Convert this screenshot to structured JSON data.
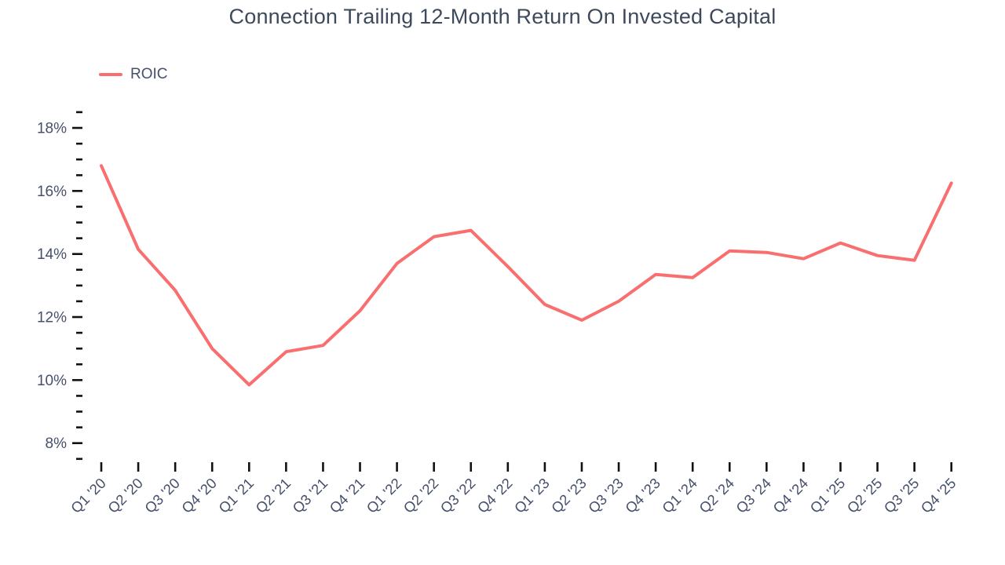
{
  "header": {
    "title": "Connection Trailing 12-Month Return On Invested Capital"
  },
  "legend": {
    "items": [
      {
        "label": "ROIC",
        "color": "#f96f6f"
      }
    ]
  },
  "chart_data": {
    "type": "line",
    "title": "Connection Trailing 12-Month Return On Invested Capital",
    "categories": [
      "Q1 '20",
      "Q2 '20",
      "Q3 '20",
      "Q4 '20",
      "Q1 '21",
      "Q2 '21",
      "Q3 '21",
      "Q4 '21",
      "Q1 '22",
      "Q2 '22",
      "Q3 '22",
      "Q4 '22",
      "Q1 '23",
      "Q2 '23",
      "Q3 '23",
      "Q4 '23",
      "Q1 '24",
      "Q2 '24",
      "Q3 '24",
      "Q4 '24",
      "Q1 '25",
      "Q2 '25",
      "Q3 '25",
      "Q4 '25"
    ],
    "series": [
      {
        "name": "ROIC",
        "color": "#f96f6f",
        "values": [
          16.8,
          14.15,
          12.85,
          11.0,
          9.85,
          10.9,
          11.1,
          12.2,
          13.7,
          14.55,
          14.75,
          13.6,
          12.4,
          11.9,
          12.5,
          13.35,
          13.25,
          14.1,
          14.05,
          13.85,
          14.35,
          13.95,
          13.8,
          16.25
        ]
      }
    ],
    "xlabel": "",
    "ylabel": "",
    "y_axis": {
      "unit": "%",
      "range": [
        7.5,
        18.5
      ],
      "minor_tick_step": 0.5,
      "labeled_ticks": [
        8,
        10,
        12,
        14,
        16,
        18
      ],
      "tick_labels": [
        "8%",
        "10%",
        "12%",
        "14%",
        "16%",
        "18%"
      ]
    },
    "x_axis": {
      "tick_label_rotation": -45
    },
    "grid": false,
    "legend_position": "top-left"
  },
  "style": {
    "background": "#ffffff",
    "line_color": "#f96f6f",
    "title_color": "#3e4a5c",
    "label_color": "#46506b",
    "tick_color": "#111111"
  }
}
